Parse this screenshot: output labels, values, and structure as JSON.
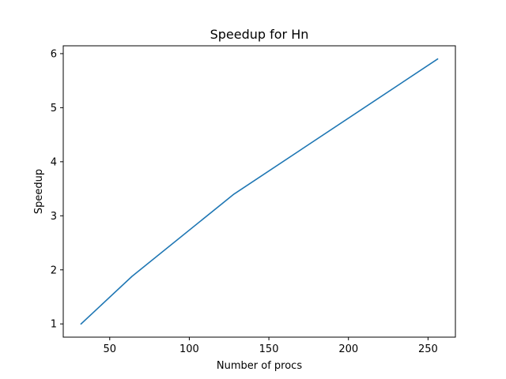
{
  "chart_data": {
    "type": "line",
    "title": "Speedup for Hn",
    "xlabel": "Number of procs",
    "ylabel": "Speedup",
    "xlim": [
      20.8,
      267.2
    ],
    "ylim": [
      0.755,
      6.145
    ],
    "xticks": [
      50,
      100,
      150,
      200,
      250
    ],
    "yticks": [
      1,
      2,
      3,
      4,
      5,
      6
    ],
    "grid": false,
    "series": [
      {
        "name": "Speedup",
        "color": "#1f77b4",
        "x": [
          32,
          64,
          128,
          256
        ],
        "y": [
          1.0,
          1.88,
          3.4,
          5.9
        ]
      }
    ]
  }
}
